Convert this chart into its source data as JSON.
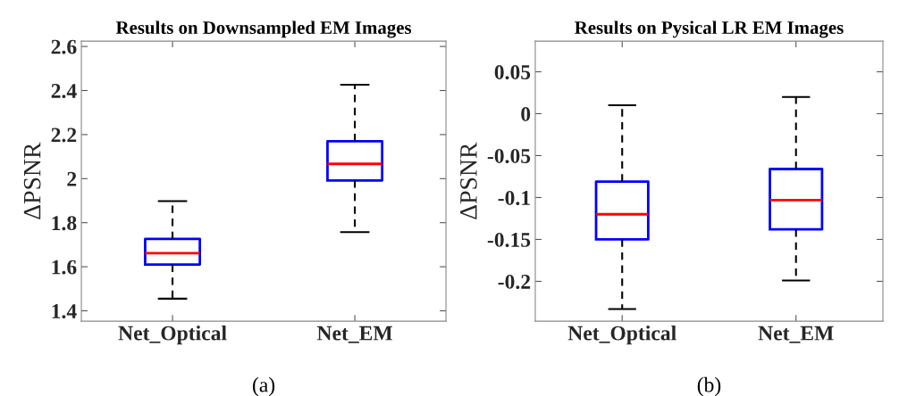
{
  "chart_data": [
    {
      "type": "box",
      "title": "Results on Downsampled EM Images",
      "ylabel": "ΔPSNR",
      "categories": [
        "Net_Optical",
        "Net_EM"
      ],
      "boxes": [
        {
          "low": 1.455,
          "q1": 1.61,
          "median": 1.662,
          "q3": 1.726,
          "high": 1.898
        },
        {
          "low": 1.757,
          "q1": 1.992,
          "median": 2.067,
          "q3": 2.17,
          "high": 2.426
        }
      ],
      "ylim": [
        1.353,
        2.624
      ],
      "yticks": [
        1.4,
        1.6,
        1.8,
        2,
        2.2,
        2.4,
        2.6
      ],
      "grid": false,
      "annotations": [
        "(a)"
      ]
    },
    {
      "type": "box",
      "title": "Results on Pysical LR EM Images",
      "ylabel": "ΔPSNR",
      "categories": [
        "Net_Optical",
        "Net_EM"
      ],
      "boxes": [
        {
          "low": -0.233,
          "q1": -0.15,
          "median": -0.12,
          "q3": -0.081,
          "high": 0.01
        },
        {
          "low": -0.199,
          "q1": -0.138,
          "median": -0.103,
          "q3": -0.066,
          "high": 0.02
        }
      ],
      "ylim": [
        -0.2475,
        0.0865
      ],
      "yticks": [
        -0.2,
        -0.15,
        -0.1,
        -0.05,
        0,
        0.05
      ],
      "grid": false,
      "annotations": [
        "(b)"
      ]
    }
  ]
}
